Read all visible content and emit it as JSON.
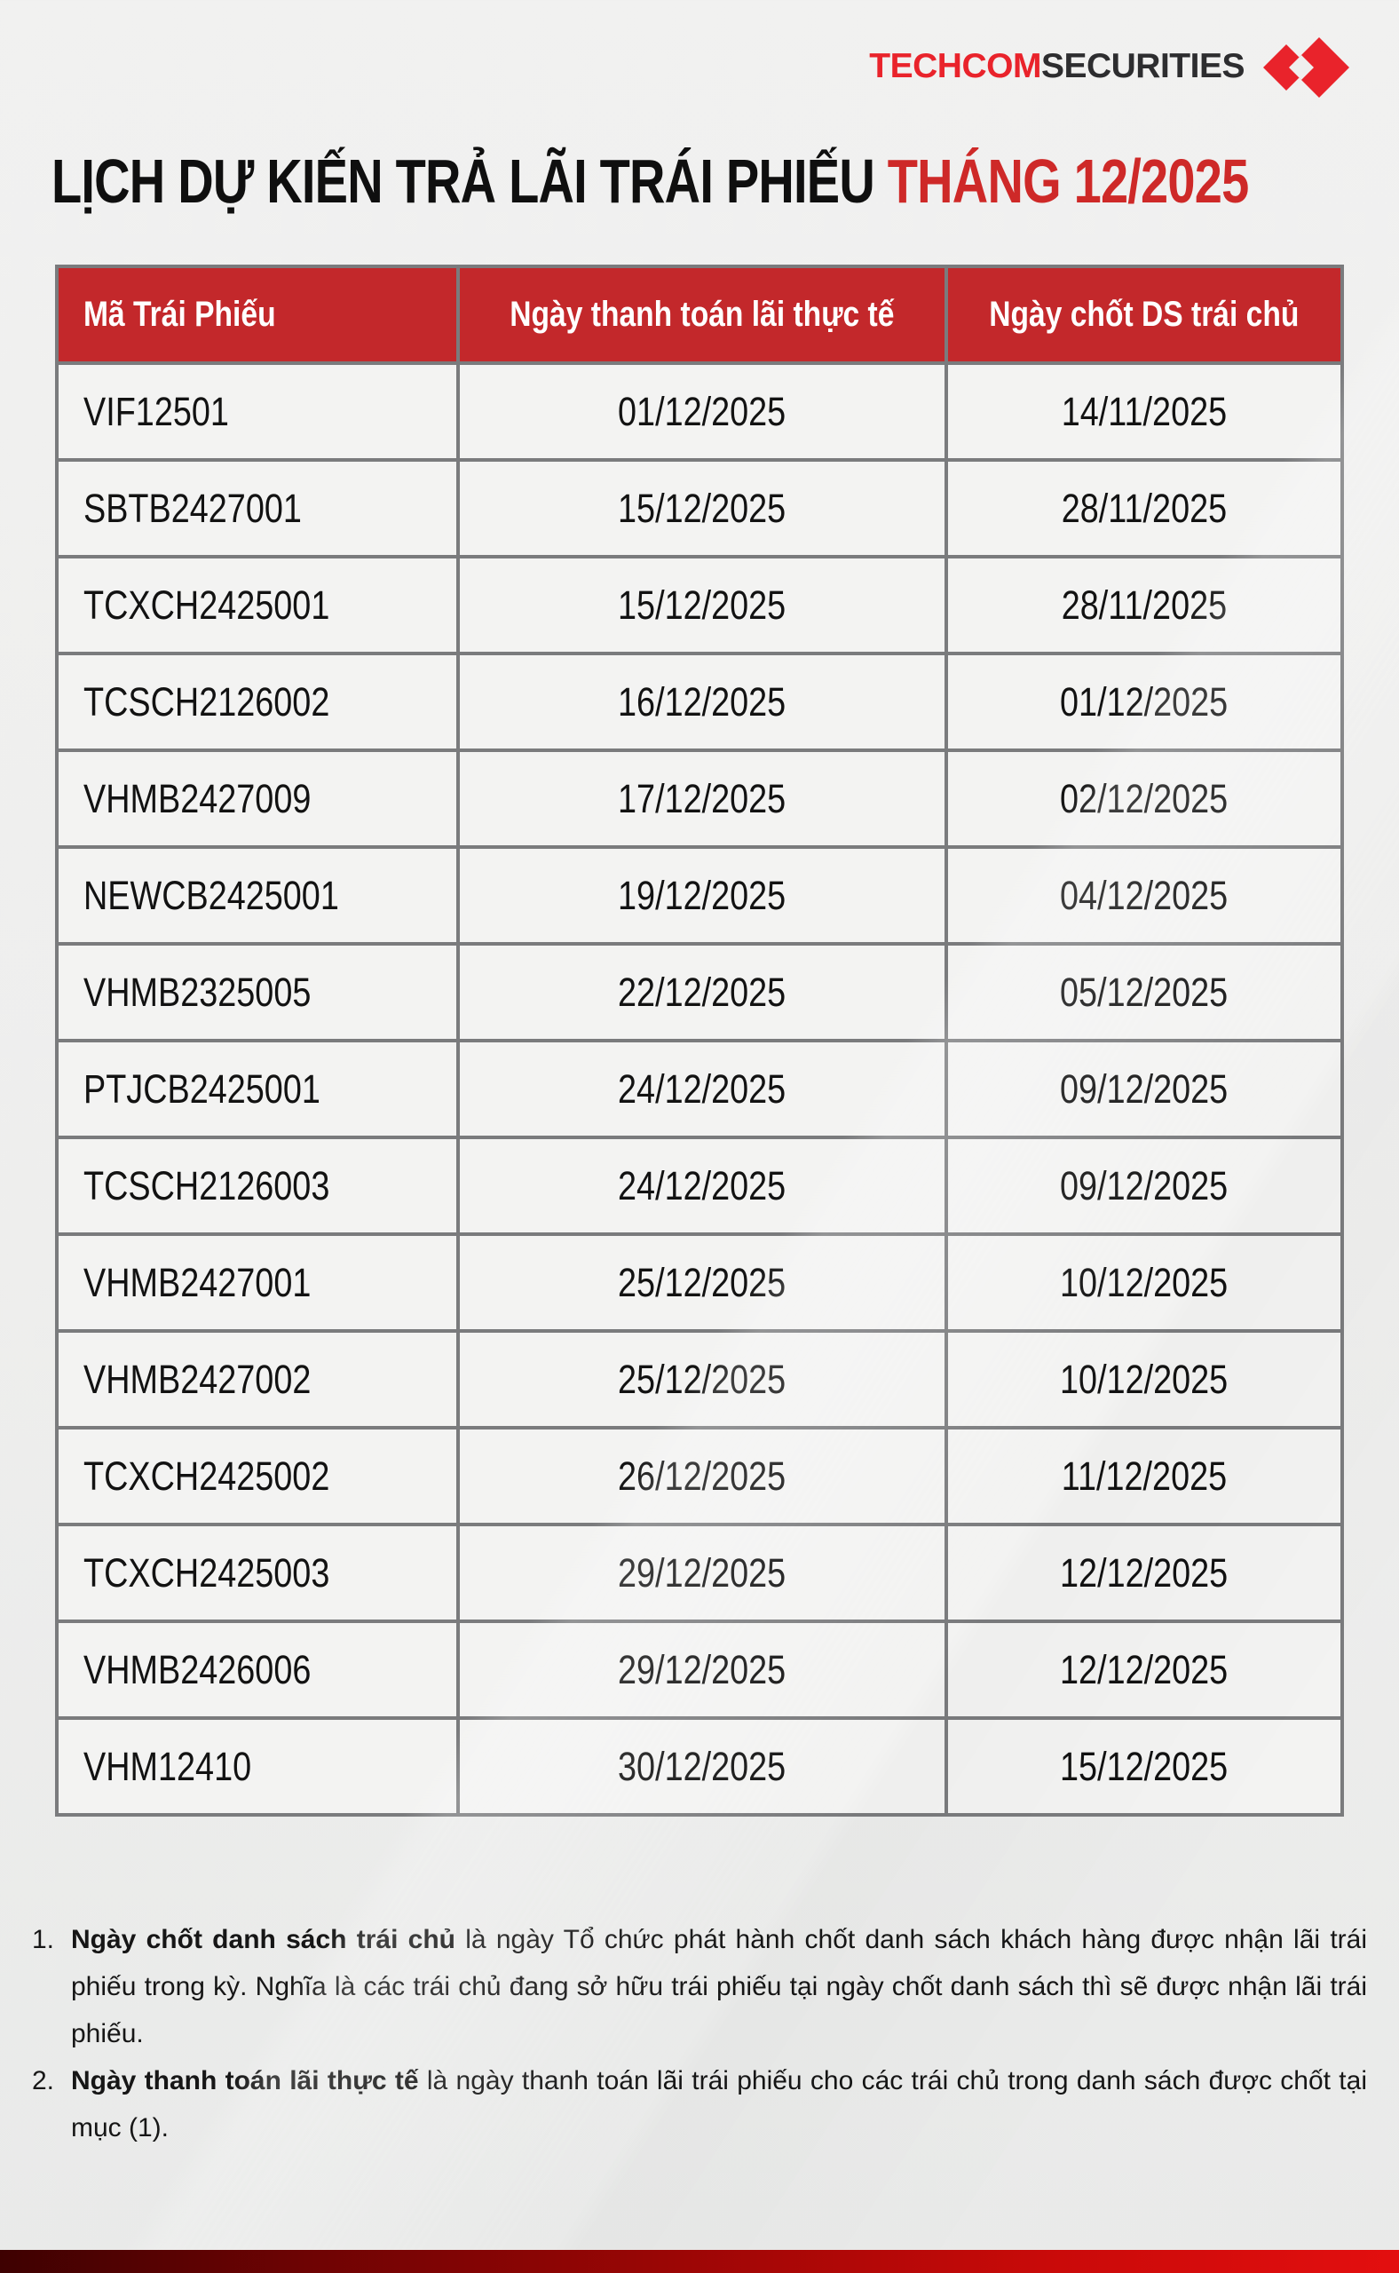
{
  "logo": {
    "techcom": "TECHCOM",
    "securities": "SECURITIES"
  },
  "title": {
    "black": "LỊCH DỰ KIẾN TRẢ LÃI TRÁI PHIẾU",
    "red": "THÁNG 12/2025"
  },
  "table": {
    "headers": [
      "Mã Trái Phiếu",
      "Ngày thanh toán lãi thực tế",
      "Ngày chốt DS trái chủ"
    ],
    "rows": [
      [
        "VIF12501",
        "01/12/2025",
        "14/11/2025"
      ],
      [
        "SBTB2427001",
        "15/12/2025",
        "28/11/2025"
      ],
      [
        "TCXCH2425001",
        "15/12/2025",
        "28/11/2025"
      ],
      [
        "TCSCH2126002",
        "16/12/2025",
        "01/12/2025"
      ],
      [
        "VHMB2427009",
        "17/12/2025",
        "02/12/2025"
      ],
      [
        "NEWCB2425001",
        "19/12/2025",
        "04/12/2025"
      ],
      [
        "VHMB2325005",
        "22/12/2025",
        "05/12/2025"
      ],
      [
        "PTJCB2425001",
        "24/12/2025",
        "09/12/2025"
      ],
      [
        "TCSCH2126003",
        "24/12/2025",
        "09/12/2025"
      ],
      [
        "VHMB2427001",
        "25/12/2025",
        "10/12/2025"
      ],
      [
        "VHMB2427002",
        "25/12/2025",
        "10/12/2025"
      ],
      [
        "TCXCH2425002",
        "26/12/2025",
        "11/12/2025"
      ],
      [
        "TCXCH2425003",
        "29/12/2025",
        "12/12/2025"
      ],
      [
        "VHMB2426006",
        "29/12/2025",
        "12/12/2025"
      ],
      [
        "VHM12410",
        "30/12/2025",
        "15/12/2025"
      ]
    ]
  },
  "notes": [
    {
      "number": "1.",
      "bold": "Ngày chốt danh sách trái chủ",
      "rest": " là ngày Tổ chức phát hành chốt danh sách khách hàng được nhận lãi trái phiếu trong kỳ. Nghĩa là các trái chủ đang sở hữu trái phiếu tại ngày chốt danh sách thì sẽ được nhận lãi trái phiếu."
    },
    {
      "number": "2.",
      "bold": "Ngày thanh toán lãi thực tế",
      "rest": " là ngày thanh toán lãi trái phiếu cho các trái chủ trong danh sách được chốt tại mục (1)."
    }
  ],
  "colors": {
    "brand_red": "#E9232B",
    "header_red": "#C3282B",
    "title_red": "#CE2928",
    "bottom_bar_left": "#3E0101",
    "bottom_bar_right": "#E30F0F"
  }
}
